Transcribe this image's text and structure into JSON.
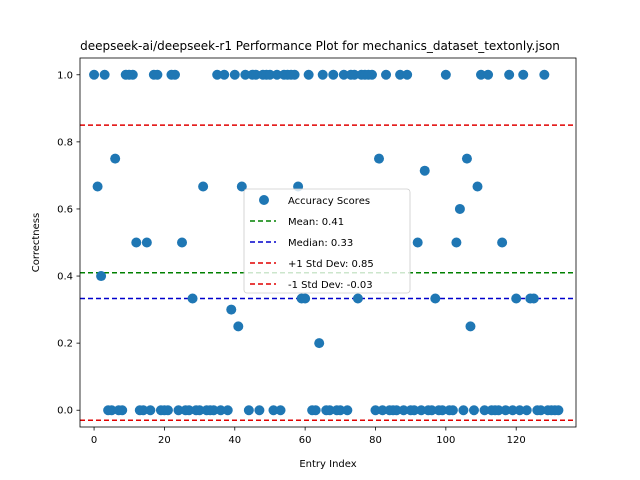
{
  "chart_data": {
    "type": "scatter",
    "title": "deepseek-ai/deepseek-r1 Performance Plot for mechanics_dataset_textonly.json",
    "xlabel": "Entry Index",
    "ylabel": "Correctness",
    "xlim": [
      -4,
      137
    ],
    "ylim": [
      -0.05,
      1.05
    ],
    "xticks": [
      0,
      20,
      40,
      60,
      80,
      100,
      120
    ],
    "yticks": [
      0.0,
      0.2,
      0.4,
      0.6,
      0.8,
      1.0
    ],
    "xtick_labels": [
      "0",
      "20",
      "40",
      "60",
      "80",
      "100",
      "120"
    ],
    "ytick_labels": [
      "0.0",
      "0.2",
      "0.4",
      "0.6",
      "0.8",
      "1.0"
    ],
    "grid": false,
    "legend_position": "center",
    "series": [
      {
        "name": "Accuracy Scores",
        "color": "#1f77b4",
        "x": [
          0,
          1,
          2,
          3,
          4,
          5,
          6,
          7,
          8,
          9,
          10,
          11,
          12,
          13,
          14,
          15,
          16,
          17,
          18,
          19,
          20,
          21,
          22,
          23,
          24,
          25,
          26,
          27,
          28,
          29,
          30,
          31,
          32,
          33,
          34,
          35,
          36,
          37,
          38,
          39,
          40,
          41,
          42,
          43,
          44,
          45,
          46,
          47,
          48,
          49,
          50,
          51,
          52,
          53,
          54,
          55,
          56,
          57,
          58,
          59,
          60,
          61,
          62,
          63,
          64,
          65,
          66,
          67,
          68,
          69,
          70,
          71,
          72,
          73,
          74,
          75,
          76,
          77,
          78,
          79,
          80,
          81,
          82,
          83,
          84,
          85,
          86,
          87,
          88,
          89,
          90,
          91,
          92,
          93,
          94,
          95,
          96,
          97,
          98,
          99,
          100,
          101,
          102,
          103,
          104,
          105,
          106,
          107,
          108,
          109,
          110,
          111,
          112,
          113,
          114,
          115,
          116,
          117,
          118,
          119,
          120,
          121,
          122,
          123,
          124,
          125,
          126,
          127,
          128,
          129,
          130,
          131,
          132
        ],
        "y": [
          1.0,
          0.667,
          0.4,
          1.0,
          0.0,
          0.0,
          0.75,
          0.0,
          0.0,
          1.0,
          1.0,
          1.0,
          0.5,
          0.0,
          0.0,
          0.5,
          0.0,
          1.0,
          1.0,
          0.0,
          0.0,
          0.0,
          1.0,
          1.0,
          0.0,
          0.5,
          0.0,
          0.0,
          0.333,
          0.0,
          0.0,
          0.667,
          0.0,
          0.0,
          0.0,
          1.0,
          0.0,
          1.0,
          0.0,
          0.3,
          1.0,
          0.25,
          0.667,
          1.0,
          0.0,
          1.0,
          1.0,
          0.0,
          1.0,
          1.0,
          1.0,
          0.0,
          1.0,
          0.0,
          1.0,
          1.0,
          1.0,
          1.0,
          0.667,
          0.333,
          0.333,
          1.0,
          0.0,
          0.0,
          0.2,
          1.0,
          0.0,
          0.0,
          1.0,
          0.0,
          0.0,
          1.0,
          0.0,
          1.0,
          1.0,
          0.333,
          1.0,
          1.0,
          1.0,
          1.0,
          0.0,
          0.75,
          0.0,
          1.0,
          0.0,
          0.0,
          0.0,
          1.0,
          0.0,
          1.0,
          0.0,
          0.0,
          0.5,
          0.0,
          0.714,
          0.0,
          0.0,
          0.333,
          0.0,
          0.0,
          1.0,
          0.0,
          0.0,
          0.5,
          0.6,
          0.0,
          0.75,
          0.25,
          0.0,
          0.667,
          1.0,
          0.0,
          1.0,
          0.0,
          0.0,
          0.0,
          0.5,
          0.0,
          1.0,
          0.0,
          0.333,
          0.0,
          1.0,
          0.0,
          0.333,
          0.333,
          0.0,
          0.0,
          1.0,
          0.0,
          0.0,
          0.0,
          0.0
        ]
      }
    ],
    "reference_lines": [
      {
        "name": "Mean: 0.41",
        "value": 0.41,
        "color": "#008000"
      },
      {
        "name": "Median: 0.33",
        "value": 0.333,
        "color": "#0000cc"
      },
      {
        "name": "+1 Std Dev: 0.85",
        "value": 0.85,
        "color": "#e00000"
      },
      {
        "name": "-1 Std Dev: -0.03",
        "value": -0.03,
        "color": "#e00000"
      }
    ]
  }
}
